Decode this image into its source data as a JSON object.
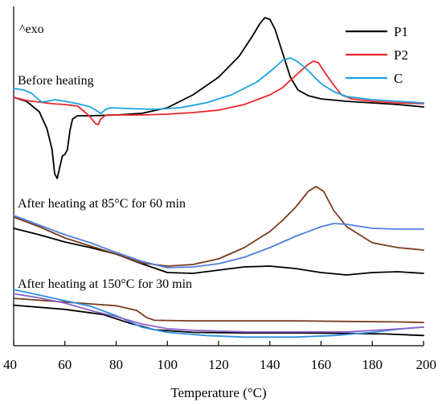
{
  "chart_data": {
    "type": "line",
    "xlabel": "Temperature (°C)",
    "ylabel": "",
    "xlim": [
      40,
      200
    ],
    "xticks": [
      40,
      60,
      80,
      100,
      120,
      140,
      160,
      180,
      200
    ],
    "exo_label": "^exo",
    "legend": {
      "position": "top-right",
      "entries": [
        {
          "name": "P1",
          "color": "#000000"
        },
        {
          "name": "P2",
          "color": "#e8262b"
        },
        {
          "name": "C",
          "color": "#1aa3e0"
        }
      ]
    },
    "panels": [
      {
        "label": "Before heating",
        "series": [
          {
            "name": "P1",
            "color": "#000000",
            "points": [
              [
                40,
                0.05
              ],
              [
                45,
                -0.2
              ],
              [
                50,
                -0.85
              ],
              [
                53,
                -1.9
              ],
              [
                55,
                -3.2
              ],
              [
                56,
                -4.7
              ],
              [
                57,
                -5.0
              ],
              [
                58,
                -4.3
              ],
              [
                59,
                -3.6
              ],
              [
                60,
                -3.5
              ],
              [
                61,
                -3.2
              ],
              [
                62,
                -2.0
              ],
              [
                63,
                -1.3
              ],
              [
                65,
                -1.1
              ],
              [
                70,
                -1.1
              ],
              [
                80,
                -1.05
              ],
              [
                90,
                -0.95
              ],
              [
                100,
                -0.6
              ],
              [
                110,
                0.2
              ],
              [
                120,
                1.3
              ],
              [
                128,
                2.6
              ],
              [
                133,
                3.8
              ],
              [
                136,
                4.6
              ],
              [
                138,
                5.0
              ],
              [
                140,
                4.9
              ],
              [
                142,
                4.3
              ],
              [
                145,
                2.8
              ],
              [
                148,
                1.3
              ],
              [
                151,
                0.5
              ],
              [
                155,
                0.15
              ],
              [
                160,
                -0.05
              ],
              [
                170,
                -0.2
              ],
              [
                180,
                -0.3
              ],
              [
                190,
                -0.4
              ],
              [
                200,
                -0.55
              ]
            ]
          },
          {
            "name": "P2",
            "color": "#e8262b",
            "points": [
              [
                40,
                0.05
              ],
              [
                45,
                -0.15
              ],
              [
                50,
                -0.25
              ],
              [
                55,
                -0.35
              ],
              [
                60,
                -0.4
              ],
              [
                65,
                -0.5
              ],
              [
                68,
                -0.9
              ],
              [
                70,
                -1.2
              ],
              [
                72,
                -1.6
              ],
              [
                73,
                -1.65
              ],
              [
                74,
                -1.3
              ],
              [
                76,
                -1.05
              ],
              [
                80,
                -1.05
              ],
              [
                90,
                -1.05
              ],
              [
                100,
                -1.0
              ],
              [
                110,
                -0.9
              ],
              [
                120,
                -0.75
              ],
              [
                130,
                -0.4
              ],
              [
                140,
                0.2
              ],
              [
                145,
                0.65
              ],
              [
                150,
                1.4
              ],
              [
                155,
                2.1
              ],
              [
                157,
                2.3
              ],
              [
                159,
                2.2
              ],
              [
                161,
                1.7
              ],
              [
                165,
                0.8
              ],
              [
                168,
                0.2
              ],
              [
                172,
                -0.05
              ],
              [
                180,
                -0.2
              ],
              [
                190,
                -0.3
              ],
              [
                200,
                -0.35
              ]
            ]
          },
          {
            "name": "C",
            "color": "#1aa3e0",
            "points": [
              [
                40,
                0.6
              ],
              [
                44,
                0.5
              ],
              [
                47,
                0.3
              ],
              [
                49,
                0.0
              ],
              [
                51,
                -0.25
              ],
              [
                53,
                -0.2
              ],
              [
                56,
                -0.1
              ],
              [
                60,
                -0.2
              ],
              [
                65,
                -0.35
              ],
              [
                70,
                -0.55
              ],
              [
                73,
                -0.85
              ],
              [
                74,
                -0.95
              ],
              [
                76,
                -0.7
              ],
              [
                78,
                -0.6
              ],
              [
                85,
                -0.65
              ],
              [
                95,
                -0.7
              ],
              [
                105,
                -0.6
              ],
              [
                115,
                -0.3
              ],
              [
                125,
                0.2
              ],
              [
                135,
                1.0
              ],
              [
                142,
                1.9
              ],
              [
                145,
                2.35
              ],
              [
                148,
                2.5
              ],
              [
                151,
                2.25
              ],
              [
                155,
                1.7
              ],
              [
                160,
                0.9
              ],
              [
                165,
                0.4
              ],
              [
                170,
                0.1
              ],
              [
                180,
                -0.1
              ],
              [
                190,
                -0.2
              ],
              [
                200,
                -0.3
              ]
            ]
          }
        ]
      },
      {
        "label": "After heating at 85°C for 60 min",
        "series": [
          {
            "name": "P1",
            "color": "#000000",
            "points": [
              [
                40,
                -0.7
              ],
              [
                50,
                -1.1
              ],
              [
                60,
                -1.55
              ],
              [
                70,
                -1.9
              ],
              [
                80,
                -2.3
              ],
              [
                90,
                -2.9
              ],
              [
                100,
                -3.45
              ],
              [
                110,
                -3.5
              ],
              [
                120,
                -3.3
              ],
              [
                130,
                -3.1
              ],
              [
                140,
                -3.05
              ],
              [
                150,
                -3.2
              ],
              [
                160,
                -3.45
              ],
              [
                170,
                -3.6
              ],
              [
                180,
                -3.45
              ],
              [
                190,
                -3.4
              ],
              [
                200,
                -3.5
              ]
            ]
          },
          {
            "name": "P2",
            "color": "#7a3b1e",
            "points": [
              [
                40,
                0.0
              ],
              [
                50,
                -0.6
              ],
              [
                60,
                -1.3
              ],
              [
                70,
                -1.8
              ],
              [
                80,
                -2.3
              ],
              [
                90,
                -2.85
              ],
              [
                100,
                -3.05
              ],
              [
                110,
                -2.95
              ],
              [
                120,
                -2.6
              ],
              [
                130,
                -1.9
              ],
              [
                140,
                -0.9
              ],
              [
                145,
                -0.2
              ],
              [
                150,
                0.6
              ],
              [
                155,
                1.6
              ],
              [
                158,
                1.9
              ],
              [
                161,
                1.6
              ],
              [
                165,
                0.4
              ],
              [
                170,
                -0.6
              ],
              [
                180,
                -1.6
              ],
              [
                190,
                -1.9
              ],
              [
                200,
                -2.05
              ]
            ]
          },
          {
            "name": "C",
            "color": "#4f7fe0",
            "points": [
              [
                40,
                0.1
              ],
              [
                50,
                -0.5
              ],
              [
                60,
                -1.1
              ],
              [
                70,
                -1.6
              ],
              [
                80,
                -2.2
              ],
              [
                90,
                -2.75
              ],
              [
                100,
                -3.15
              ],
              [
                110,
                -3.1
              ],
              [
                120,
                -2.9
              ],
              [
                130,
                -2.5
              ],
              [
                140,
                -1.9
              ],
              [
                150,
                -1.2
              ],
              [
                160,
                -0.6
              ],
              [
                165,
                -0.4
              ],
              [
                170,
                -0.45
              ],
              [
                180,
                -0.7
              ],
              [
                190,
                -0.75
              ],
              [
                200,
                -0.75
              ]
            ]
          }
        ]
      },
      {
        "label": "After heating at 150°C for 30 min",
        "series": [
          {
            "name": "P1",
            "color": "#000000",
            "points": [
              [
                40,
                -0.2
              ],
              [
                60,
                -0.6
              ],
              [
                75,
                -1.1
              ],
              [
                85,
                -1.9
              ],
              [
                95,
                -2.55
              ],
              [
                110,
                -2.8
              ],
              [
                130,
                -2.85
              ],
              [
                150,
                -2.85
              ],
              [
                170,
                -2.9
              ],
              [
                185,
                -2.95
              ],
              [
                200,
                -3.1
              ]
            ]
          },
          {
            "name": "P2",
            "color": "#7a3b1e",
            "points": [
              [
                40,
                0.45
              ],
              [
                60,
                0.1
              ],
              [
                80,
                -0.25
              ],
              [
                88,
                -0.7
              ],
              [
                92,
                -1.4
              ],
              [
                95,
                -1.65
              ],
              [
                110,
                -1.7
              ],
              [
                130,
                -1.7
              ],
              [
                150,
                -1.7
              ],
              [
                170,
                -1.75
              ],
              [
                190,
                -1.8
              ],
              [
                200,
                -1.85
              ]
            ]
          },
          {
            "name": "C",
            "color": "#2e8fe0",
            "points": [
              [
                40,
                1.3
              ],
              [
                55,
                0.5
              ],
              [
                70,
                -0.3
              ],
              [
                80,
                -1.2
              ],
              [
                90,
                -2.3
              ],
              [
                100,
                -2.8
              ],
              [
                115,
                -3.1
              ],
              [
                130,
                -3.25
              ],
              [
                150,
                -3.25
              ],
              [
                165,
                -3.1
              ],
              [
                180,
                -2.8
              ],
              [
                190,
                -2.5
              ],
              [
                200,
                -2.3
              ]
            ]
          },
          {
            "name": "purple",
            "color": "#8a63c9",
            "points": [
              [
                40,
                0.9
              ],
              [
                50,
                0.5
              ],
              [
                60,
                0.0
              ],
              [
                70,
                -0.7
              ],
              [
                80,
                -1.3
              ],
              [
                90,
                -2.0
              ],
              [
                100,
                -2.45
              ],
              [
                110,
                -2.6
              ],
              [
                130,
                -2.75
              ],
              [
                150,
                -2.75
              ],
              [
                170,
                -2.75
              ],
              [
                185,
                -2.55
              ],
              [
                200,
                -2.3
              ]
            ]
          }
        ]
      }
    ]
  }
}
